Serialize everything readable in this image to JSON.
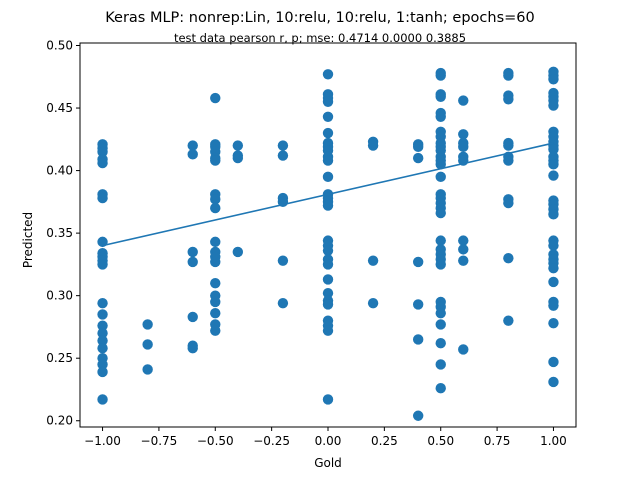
{
  "chart_data": {
    "type": "scatter",
    "title": "Keras MLP: nonrep:Lin, 10:relu, 10:relu, 1:tanh; epochs=60",
    "subtitle": "test data pearson r, p; mse:  0.4714  0.0000  0.3885",
    "xlabel": "Gold",
    "ylabel": "Predicted",
    "xlim": [
      -1.1,
      1.1
    ],
    "ylim": [
      0.195,
      0.502
    ],
    "x_ticks": [
      -1.0,
      -0.75,
      -0.5,
      -0.25,
      0.0,
      0.25,
      0.5,
      0.75,
      1.0
    ],
    "x_tick_labels": [
      "−1.00",
      "−0.75",
      "−0.50",
      "−0.25",
      "0.00",
      "0.25",
      "0.50",
      "0.75",
      "1.00"
    ],
    "y_ticks": [
      0.2,
      0.25,
      0.3,
      0.35,
      0.4,
      0.45,
      0.5
    ],
    "y_tick_labels": [
      "0.20",
      "0.25",
      "0.30",
      "0.35",
      "0.40",
      "0.45",
      "0.50"
    ],
    "grid": false,
    "marker_color": "#1f77b4",
    "line_color": "#1f77b4",
    "fit_line": {
      "x": [
        -1.0,
        1.0
      ],
      "y": [
        0.34,
        0.422
      ]
    },
    "points": [
      [
        -1.0,
        0.421
      ],
      [
        -1.0,
        0.418
      ],
      [
        -1.0,
        0.415
      ],
      [
        -1.0,
        0.409
      ],
      [
        -1.0,
        0.406
      ],
      [
        -1.0,
        0.381
      ],
      [
        -1.0,
        0.378
      ],
      [
        -1.0,
        0.343
      ],
      [
        -1.0,
        0.334
      ],
      [
        -1.0,
        0.331
      ],
      [
        -1.0,
        0.328
      ],
      [
        -1.0,
        0.325
      ],
      [
        -1.0,
        0.294
      ],
      [
        -1.0,
        0.285
      ],
      [
        -1.0,
        0.276
      ],
      [
        -1.0,
        0.27
      ],
      [
        -1.0,
        0.264
      ],
      [
        -1.0,
        0.258
      ],
      [
        -1.0,
        0.25
      ],
      [
        -1.0,
        0.245
      ],
      [
        -1.0,
        0.239
      ],
      [
        -1.0,
        0.217
      ],
      [
        -0.8,
        0.277
      ],
      [
        -0.8,
        0.261
      ],
      [
        -0.8,
        0.241
      ],
      [
        -0.6,
        0.42
      ],
      [
        -0.6,
        0.413
      ],
      [
        -0.6,
        0.335
      ],
      [
        -0.6,
        0.327
      ],
      [
        -0.6,
        0.283
      ],
      [
        -0.6,
        0.26
      ],
      [
        -0.6,
        0.258
      ],
      [
        -0.5,
        0.458
      ],
      [
        -0.5,
        0.421
      ],
      [
        -0.5,
        0.419
      ],
      [
        -0.5,
        0.415
      ],
      [
        -0.5,
        0.41
      ],
      [
        -0.5,
        0.408
      ],
      [
        -0.5,
        0.381
      ],
      [
        -0.5,
        0.377
      ],
      [
        -0.5,
        0.37
      ],
      [
        -0.5,
        0.343
      ],
      [
        -0.5,
        0.335
      ],
      [
        -0.5,
        0.331
      ],
      [
        -0.5,
        0.327
      ],
      [
        -0.5,
        0.31
      ],
      [
        -0.5,
        0.3
      ],
      [
        -0.5,
        0.295
      ],
      [
        -0.5,
        0.286
      ],
      [
        -0.5,
        0.277
      ],
      [
        -0.5,
        0.272
      ],
      [
        -0.4,
        0.42
      ],
      [
        -0.4,
        0.412
      ],
      [
        -0.4,
        0.41
      ],
      [
        -0.4,
        0.335
      ],
      [
        -0.2,
        0.42
      ],
      [
        -0.2,
        0.412
      ],
      [
        -0.2,
        0.378
      ],
      [
        -0.2,
        0.375
      ],
      [
        -0.2,
        0.328
      ],
      [
        -0.2,
        0.294
      ],
      [
        0.0,
        0.477
      ],
      [
        0.0,
        0.461
      ],
      [
        0.0,
        0.458
      ],
      [
        0.0,
        0.455
      ],
      [
        0.0,
        0.443
      ],
      [
        0.0,
        0.43
      ],
      [
        0.0,
        0.422
      ],
      [
        0.0,
        0.419
      ],
      [
        0.0,
        0.416
      ],
      [
        0.0,
        0.411
      ],
      [
        0.0,
        0.408
      ],
      [
        0.0,
        0.395
      ],
      [
        0.0,
        0.381
      ],
      [
        0.0,
        0.378
      ],
      [
        0.0,
        0.375
      ],
      [
        0.0,
        0.372
      ],
      [
        0.0,
        0.344
      ],
      [
        0.0,
        0.34
      ],
      [
        0.0,
        0.336
      ],
      [
        0.0,
        0.329
      ],
      [
        0.0,
        0.325
      ],
      [
        0.0,
        0.313
      ],
      [
        0.0,
        0.302
      ],
      [
        0.0,
        0.296
      ],
      [
        0.0,
        0.293
      ],
      [
        0.0,
        0.28
      ],
      [
        0.0,
        0.276
      ],
      [
        0.0,
        0.272
      ],
      [
        0.0,
        0.217
      ],
      [
        0.2,
        0.423
      ],
      [
        0.2,
        0.42
      ],
      [
        0.2,
        0.328
      ],
      [
        0.2,
        0.294
      ],
      [
        0.4,
        0.421
      ],
      [
        0.4,
        0.419
      ],
      [
        0.4,
        0.41
      ],
      [
        0.4,
        0.327
      ],
      [
        0.4,
        0.293
      ],
      [
        0.4,
        0.265
      ],
      [
        0.4,
        0.204
      ],
      [
        0.5,
        0.478
      ],
      [
        0.5,
        0.476
      ],
      [
        0.5,
        0.461
      ],
      [
        0.5,
        0.459
      ],
      [
        0.5,
        0.446
      ],
      [
        0.5,
        0.443
      ],
      [
        0.5,
        0.431
      ],
      [
        0.5,
        0.427
      ],
      [
        0.5,
        0.422
      ],
      [
        0.5,
        0.419
      ],
      [
        0.5,
        0.416
      ],
      [
        0.5,
        0.411
      ],
      [
        0.5,
        0.408
      ],
      [
        0.5,
        0.405
      ],
      [
        0.5,
        0.395
      ],
      [
        0.5,
        0.381
      ],
      [
        0.5,
        0.378
      ],
      [
        0.5,
        0.374
      ],
      [
        0.5,
        0.37
      ],
      [
        0.5,
        0.366
      ],
      [
        0.5,
        0.344
      ],
      [
        0.5,
        0.337
      ],
      [
        0.5,
        0.333
      ],
      [
        0.5,
        0.329
      ],
      [
        0.5,
        0.325
      ],
      [
        0.5,
        0.295
      ],
      [
        0.5,
        0.291
      ],
      [
        0.5,
        0.286
      ],
      [
        0.5,
        0.277
      ],
      [
        0.5,
        0.262
      ],
      [
        0.5,
        0.245
      ],
      [
        0.5,
        0.226
      ],
      [
        0.6,
        0.456
      ],
      [
        0.6,
        0.429
      ],
      [
        0.6,
        0.422
      ],
      [
        0.6,
        0.419
      ],
      [
        0.6,
        0.411
      ],
      [
        0.6,
        0.408
      ],
      [
        0.6,
        0.344
      ],
      [
        0.6,
        0.337
      ],
      [
        0.6,
        0.328
      ],
      [
        0.6,
        0.257
      ],
      [
        0.8,
        0.478
      ],
      [
        0.8,
        0.476
      ],
      [
        0.8,
        0.46
      ],
      [
        0.8,
        0.457
      ],
      [
        0.8,
        0.422
      ],
      [
        0.8,
        0.42
      ],
      [
        0.8,
        0.411
      ],
      [
        0.8,
        0.408
      ],
      [
        0.8,
        0.377
      ],
      [
        0.8,
        0.374
      ],
      [
        0.8,
        0.33
      ],
      [
        0.8,
        0.28
      ],
      [
        1.0,
        0.479
      ],
      [
        1.0,
        0.476
      ],
      [
        1.0,
        0.473
      ],
      [
        1.0,
        0.462
      ],
      [
        1.0,
        0.459
      ],
      [
        1.0,
        0.456
      ],
      [
        1.0,
        0.452
      ],
      [
        1.0,
        0.431
      ],
      [
        1.0,
        0.427
      ],
      [
        1.0,
        0.423
      ],
      [
        1.0,
        0.42
      ],
      [
        1.0,
        0.417
      ],
      [
        1.0,
        0.411
      ],
      [
        1.0,
        0.408
      ],
      [
        1.0,
        0.405
      ],
      [
        1.0,
        0.396
      ],
      [
        1.0,
        0.376
      ],
      [
        1.0,
        0.373
      ],
      [
        1.0,
        0.369
      ],
      [
        1.0,
        0.365
      ],
      [
        1.0,
        0.344
      ],
      [
        1.0,
        0.34
      ],
      [
        1.0,
        0.333
      ],
      [
        1.0,
        0.329
      ],
      [
        1.0,
        0.326
      ],
      [
        1.0,
        0.322
      ],
      [
        1.0,
        0.311
      ],
      [
        1.0,
        0.295
      ],
      [
        1.0,
        0.292
      ],
      [
        1.0,
        0.278
      ],
      [
        1.0,
        0.247
      ],
      [
        1.0,
        0.231
      ]
    ]
  }
}
